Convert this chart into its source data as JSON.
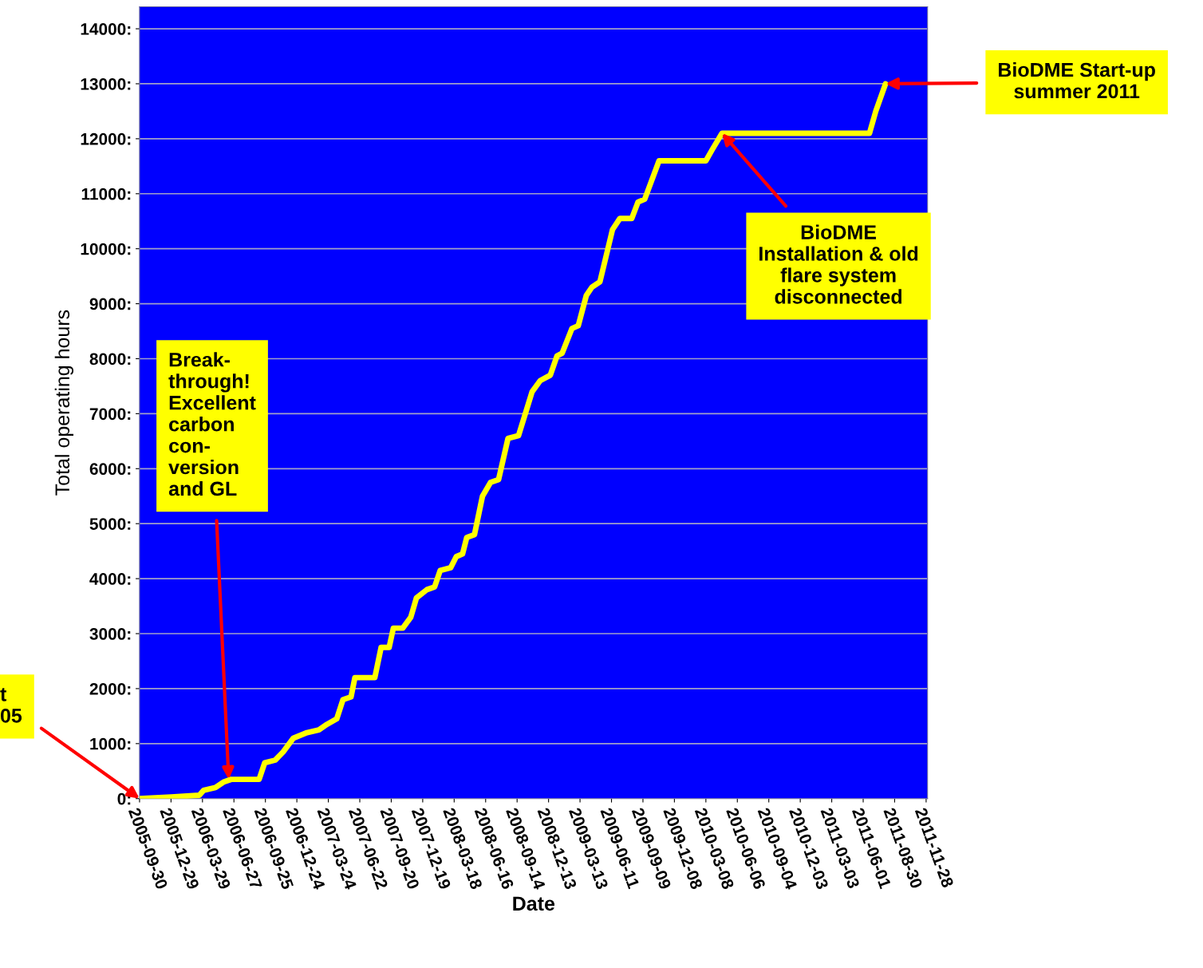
{
  "chart_data": {
    "type": "line",
    "xlabel": "Date",
    "ylabel": "Total operating hours",
    "x": [
      "2005-09-30",
      "2005-12-30",
      "2006-03-20",
      "2006-04-01",
      "2006-05-05",
      "2006-05-28",
      "2006-06-19",
      "2006-09-07",
      "2006-09-23",
      "2006-10-23",
      "2006-11-15",
      "2006-12-14",
      "2007-01-22",
      "2007-02-25",
      "2007-03-20",
      "2007-04-17",
      "2007-05-05",
      "2007-05-28",
      "2007-06-08",
      "2007-08-04",
      "2007-08-22",
      "2007-09-14",
      "2007-09-26",
      "2007-10-23",
      "2007-11-15",
      "2007-12-01",
      "2007-12-31",
      "2008-01-22",
      "2008-02-07",
      "2008-03-08",
      "2008-03-24",
      "2008-04-11",
      "2008-04-23",
      "2008-05-15",
      "2008-06-07",
      "2008-06-30",
      "2008-07-23",
      "2008-08-19",
      "2008-09-18",
      "2008-10-27",
      "2008-11-19",
      "2008-12-18",
      "2009-01-06",
      "2009-01-21",
      "2009-02-18",
      "2009-03-08",
      "2009-03-31",
      "2009-04-16",
      "2009-05-09",
      "2009-06-14",
      "2009-07-05",
      "2009-08-08",
      "2009-08-26",
      "2009-09-14",
      "2009-10-25",
      "2010-03-08",
      "2010-03-26",
      "2010-04-23",
      "2011-06-19",
      "2011-07-07",
      "2011-08-04"
    ],
    "series": [
      {
        "color": "#ffff00",
        "values": [
          0,
          30,
          60,
          150,
          200,
          300,
          350,
          350,
          650,
          700,
          850,
          1100,
          1200,
          1250,
          1350,
          1450,
          1800,
          1850,
          2200,
          2200,
          2750,
          2750,
          3100,
          3100,
          3300,
          3650,
          3800,
          3850,
          4150,
          4200,
          4400,
          4450,
          4750,
          4800,
          5500,
          5750,
          5800,
          6550,
          6600,
          7400,
          7600,
          7700,
          8050,
          8100,
          8550,
          8600,
          9150,
          9300,
          9400,
          10350,
          10550,
          10550,
          10850,
          10900,
          11600,
          11600,
          11800,
          12100,
          12100,
          12500,
          13000
        ]
      }
    ],
    "xlim": [
      "2005-09-30",
      "2011-12-02"
    ],
    "xticks": [
      "2005-09-30",
      "2005-12-29",
      "2006-03-29",
      "2006-06-27",
      "2006-09-25",
      "2006-12-24",
      "2007-03-24",
      "2007-06-22",
      "2007-09-20",
      "2007-12-19",
      "2008-03-18",
      "2008-06-16",
      "2008-09-14",
      "2008-12-13",
      "2009-03-13",
      "2009-06-11",
      "2009-09-09",
      "2009-12-08",
      "2010-03-08",
      "2010-06-06",
      "2010-09-04",
      "2010-12-03",
      "2011-03-03",
      "2011-06-01",
      "2011-08-30",
      "2011-11-28"
    ],
    "ylim": [
      0,
      14400
    ],
    "yticks": [
      {
        "value": 0,
        "label": "0:"
      },
      {
        "value": 1000,
        "label": "1000:"
      },
      {
        "value": 2000,
        "label": "2000:"
      },
      {
        "value": 3000,
        "label": "3000:"
      },
      {
        "value": 4000,
        "label": "4000:"
      },
      {
        "value": 5000,
        "label": "5000:"
      },
      {
        "value": 6000,
        "label": "6000:"
      },
      {
        "value": 7000,
        "label": "7000:"
      },
      {
        "value": 8000,
        "label": "8000:"
      },
      {
        "value": 9000,
        "label": "9000:"
      },
      {
        "value": 10000,
        "label": "10000:"
      },
      {
        "value": 11000,
        "label": "11000:"
      },
      {
        "value": 12000,
        "label": "12000:"
      },
      {
        "value": 13000,
        "label": "13000:"
      },
      {
        "value": 14000,
        "label": "14000:"
      }
    ],
    "grid": "y",
    "marker": "none",
    "line_style": "solid",
    "annotations": [
      {
        "text": "BioDME Start-up\nsummer 2011",
        "x": "2011-08-04",
        "y": 13000
      },
      {
        "text": "BioDME\nInstallation & old\nflare system\ndisconnected",
        "x": "2010-04-23",
        "y": 12100
      },
      {
        "text": "Break-\nthrough!\nExcellent\ncarbon\ncon-\nversion\nand GL",
        "x": "2006-06-12",
        "y": 350
      },
      {
        "text": "t\n05",
        "x": "2005-09-30",
        "y": 0
      }
    ]
  }
}
